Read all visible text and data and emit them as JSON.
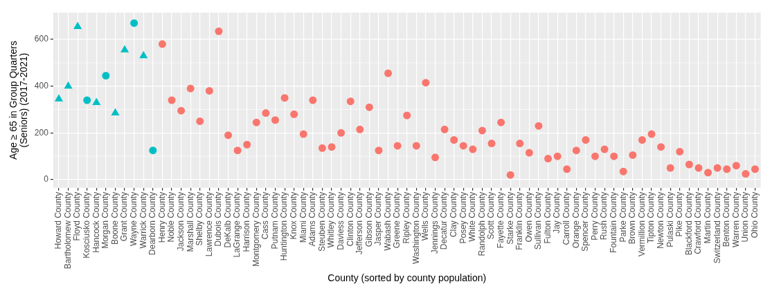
{
  "chart_data": {
    "type": "scatter",
    "xlabel": "County (sorted by county population)",
    "ylabel": "Age ≥ 65 in Group Quarters\n(Seniors) (2017-2021)",
    "categories": [
      "Howard County",
      "Bartholomew County",
      "Floyd County",
      "Kosciusko County",
      "Hancock County",
      "Morgan County",
      "Boone County",
      "Grant County",
      "Wayne County",
      "Warrick County",
      "Dearborn County",
      "Henry County",
      "Noble County",
      "Jackson County",
      "Marshall County",
      "Shelby County",
      "Lawrence County",
      "Dubois County",
      "DeKalb County",
      "LaGrange County",
      "Harrison County",
      "Montgomery County",
      "Cass County",
      "Putnam County",
      "Huntington County",
      "Knox County",
      "Miami County",
      "Adams County",
      "Steuben County",
      "Whitley County",
      "Daviess County",
      "Clinton County",
      "Jefferson County",
      "Gibson County",
      "Jasper County",
      "Wabash County",
      "Greene County",
      "Ripley County",
      "Washington County",
      "Wells County",
      "Jennings County",
      "Decatur County",
      "Clay County",
      "Posey County",
      "White County",
      "Randolph County",
      "Scott County",
      "Fayette County",
      "Starke County",
      "Franklin County",
      "Owen County",
      "Sullivan County",
      "Fulton County",
      "Jay County",
      "Carroll County",
      "Orange County",
      "Spencer County",
      "Perry County",
      "Rush County",
      "Fountain County",
      "Parke County",
      "Brown County",
      "Vermillion County",
      "Tipton County",
      "Newton County",
      "Pulaski County",
      "Pike County",
      "Blackford County",
      "Crawford County",
      "Martin County",
      "Switzerland County",
      "Benton County",
      "Warren County",
      "Union County",
      "Ohio County"
    ],
    "series": [
      {
        "color": "#00bfc4",
        "marker": "triangle",
        "x": [
          "Howard County",
          "Bartholomew County",
          "Floyd County",
          "Hancock County",
          "Boone County",
          "Grant County",
          "Warrick County"
        ],
        "values": [
          345,
          400,
          655,
          330,
          285,
          555,
          530
        ]
      },
      {
        "color": "#00bfc4",
        "marker": "circle",
        "x": [
          "Kosciusko County",
          "Morgan County",
          "Wayne County",
          "Dearborn County"
        ],
        "values": [
          340,
          445,
          670,
          125
        ]
      },
      {
        "color": "#f8766d",
        "marker": "circle",
        "x": [
          "Henry County",
          "Noble County",
          "Jackson County",
          "Marshall County",
          "Shelby County",
          "Lawrence County",
          "Dubois County",
          "DeKalb County",
          "LaGrange County",
          "Harrison County",
          "Montgomery County",
          "Cass County",
          "Putnam County",
          "Huntington County",
          "Knox County",
          "Miami County",
          "Adams County",
          "Steuben County",
          "Whitley County",
          "Daviess County",
          "Clinton County",
          "Jefferson County",
          "Gibson County",
          "Jasper County",
          "Wabash County",
          "Greene County",
          "Ripley County",
          "Washington County",
          "Wells County",
          "Jennings County",
          "Decatur County",
          "Clay County",
          "Posey County",
          "White County",
          "Randolph County",
          "Scott County",
          "Fayette County",
          "Starke County",
          "Franklin County",
          "Owen County",
          "Sullivan County",
          "Fulton County",
          "Jay County",
          "Carroll County",
          "Orange County",
          "Spencer County",
          "Perry County",
          "Rush County",
          "Fountain County",
          "Parke County",
          "Brown County",
          "Vermillion County",
          "Tipton County",
          "Newton County",
          "Pulaski County",
          "Pike County",
          "Blackford County",
          "Crawford County",
          "Martin County",
          "Switzerland County",
          "Benton County",
          "Warren County",
          "Union County",
          "Ohio County"
        ],
        "values": [
          580,
          340,
          295,
          390,
          250,
          380,
          635,
          190,
          125,
          150,
          245,
          285,
          255,
          350,
          280,
          195,
          340,
          135,
          140,
          200,
          335,
          215,
          310,
          125,
          455,
          145,
          275,
          145,
          415,
          95,
          215,
          170,
          145,
          130,
          210,
          155,
          245,
          20,
          155,
          115,
          230,
          90,
          100,
          45,
          125,
          170,
          100,
          130,
          100,
          35,
          105,
          170,
          195,
          140,
          50,
          120,
          65,
          50,
          30,
          50,
          45,
          60,
          25,
          45
        ]
      }
    ],
    "ylim": [
      -35,
      715
    ],
    "yticks": [
      0,
      200,
      400,
      600
    ],
    "grid": true,
    "legend": false
  }
}
